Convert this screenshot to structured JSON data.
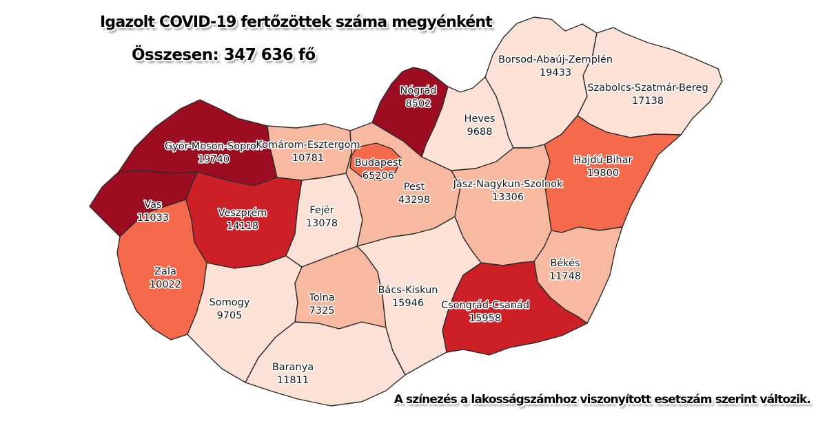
{
  "title": "Igazolt COVID-19 fertőzöttek száma megyénként",
  "subtitle": "Összesen: 347 636 fő",
  "footnote": "A színezés a lakosságszámhoz viszonyított esetszám szerint változik.",
  "map": {
    "background": "#ffffff",
    "border_color": "#2b2b2b",
    "label_color": "#161616",
    "palette": {
      "level1": "#fbe1d6",
      "level2": "#f7b99f",
      "level3": "#f66a4c",
      "level4": "#cd2026",
      "level5": "#9c0d22"
    },
    "counties": [
      {
        "id": "vas",
        "name": "Vas",
        "cases": 11033,
        "level": "level5"
      },
      {
        "id": "gyms",
        "name": "Győr-Moson-Sopron",
        "cases": 19740,
        "level": "level5"
      },
      {
        "id": "veszprem",
        "name": "Veszprém",
        "cases": 14118,
        "level": "level4"
      },
      {
        "id": "zala",
        "name": "Zala",
        "cases": 10022,
        "level": "level3"
      },
      {
        "id": "somogy",
        "name": "Somogy",
        "cases": 9705,
        "level": "level1"
      },
      {
        "id": "komarom",
        "name": "Komárom-Esztergom",
        "cases": 10781,
        "level": "level2"
      },
      {
        "id": "fejer",
        "name": "Fejér",
        "cases": 13078,
        "level": "level1"
      },
      {
        "id": "tolna",
        "name": "Tolna",
        "cases": 7325,
        "level": "level2"
      },
      {
        "id": "baranya",
        "name": "Baranya",
        "cases": 11811,
        "level": "level1"
      },
      {
        "id": "pest",
        "name": "Pest",
        "cases": 43298,
        "level": "level2"
      },
      {
        "id": "budapest",
        "name": "Budapest",
        "cases": 65206,
        "level": "level3"
      },
      {
        "id": "nograd",
        "name": "Nógrád",
        "cases": 8502,
        "level": "level5"
      },
      {
        "id": "heves",
        "name": "Heves",
        "cases": 9688,
        "level": "level1"
      },
      {
        "id": "borsod",
        "name": "Borsod-Abaúj-Zemplén",
        "cases": 19433,
        "level": "level1"
      },
      {
        "id": "szabolcs",
        "name": "Szabolcs-Szatmár-Bereg",
        "cases": 17138,
        "level": "level1"
      },
      {
        "id": "hajdu",
        "name": "Hajdú-Bihar",
        "cases": 19800,
        "level": "level3"
      },
      {
        "id": "jasz",
        "name": "Jász-Nagykun-Szolnok",
        "cases": 13306,
        "level": "level2"
      },
      {
        "id": "bekes",
        "name": "Békés",
        "cases": 11748,
        "level": "level2"
      },
      {
        "id": "csongrad",
        "name": "Csongrád-Csanád",
        "cases": 15958,
        "level": "level4"
      },
      {
        "id": "bacs",
        "name": "Bács-Kiskun",
        "cases": 15946,
        "level": "level1"
      }
    ]
  }
}
